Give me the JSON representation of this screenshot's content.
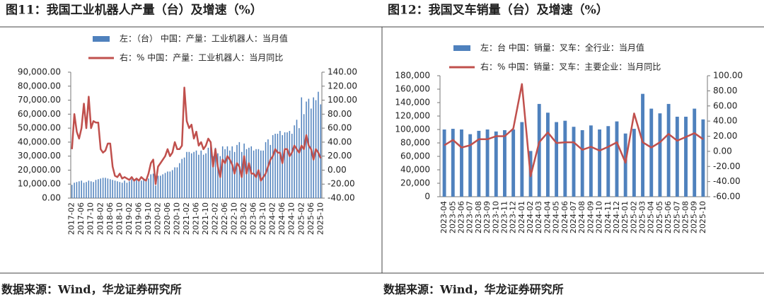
{
  "chart_data": [
    {
      "type": "bar",
      "title": "图11：我国工业机器人产量（台）及增速（%）",
      "source": "数据来源：Wind，华龙证券研究所",
      "categories": [
        "2017-02",
        null,
        null,
        null,
        "2017-06",
        null,
        null,
        null,
        "2017-10",
        null,
        null,
        null,
        "2018-02",
        null,
        null,
        null,
        "2018-06",
        null,
        null,
        null,
        "2018-10",
        null,
        null,
        null,
        "2019-02",
        null,
        null,
        null,
        "2019-06",
        null,
        null,
        null,
        "2019-10",
        null,
        null,
        null,
        "2020-02",
        null,
        null,
        null,
        "2020-06",
        null,
        null,
        null,
        "2020-10",
        null,
        null,
        null,
        "2021-02",
        null,
        null,
        null,
        "2021-06",
        null,
        null,
        null,
        "2021-10",
        null,
        null,
        null,
        "2022-02",
        null,
        null,
        null,
        "2022-06",
        null,
        null,
        null,
        "2022-10",
        null,
        null,
        null,
        "2023-02",
        null,
        null,
        null,
        "2023-06",
        null,
        null,
        null,
        "2023-10",
        null,
        null,
        null,
        "2024-02",
        null,
        null,
        null,
        "2024-06",
        null,
        null,
        null,
        "2024-10",
        null,
        null,
        null,
        "2025-02",
        null,
        null,
        null,
        "2025-06",
        null,
        null,
        null,
        "2025-10"
      ],
      "series": [
        {
          "name": "左：（台） 中国：产量：工业机器人：当月值",
          "type": "bar",
          "axis": "y",
          "color": "#4f81bd",
          "values": [
            9500,
            11000,
            11500,
            12000,
            12500,
            11000,
            11500,
            12500,
            12000,
            11500,
            13000,
            13500,
            14000,
            14500,
            14500,
            14000,
            13500,
            13000,
            12500,
            12000,
            11500,
            11000,
            12500,
            11000,
            12000,
            13500,
            13500,
            14000,
            13000,
            12500,
            13000,
            13500,
            14000,
            17000,
            17500,
            9000,
            16000,
            16000,
            17000,
            18000,
            19000,
            19000,
            20000,
            22000,
            22000,
            25000,
            28000,
            29000,
            33000,
            33000,
            32000,
            33000,
            34000,
            31000,
            34000,
            31000,
            32000,
            36000,
            38000,
            30000,
            36000,
            32000,
            30000,
            37000,
            35000,
            37000,
            34000,
            37000,
            33000,
            38000,
            40000,
            33000,
            39000,
            35000,
            36000,
            37000,
            34000,
            35000,
            35000,
            34000,
            34000,
            40000,
            42000,
            38000,
            45000,
            46000,
            46000,
            48000,
            45000,
            47000,
            47000,
            48000,
            46000,
            52000,
            56000,
            50000,
            72000,
            60000,
            69000,
            71000,
            64000,
            72000,
            70000,
            76000,
            67000
          ]
        },
        {
          "name": "右：% 中国：产量：工业机器人：当月同比",
          "type": "line",
          "axis": "y2",
          "color": "#c0504d",
          "values": [
            30,
            80,
            55,
            45,
            60,
            95,
            60,
            105,
            60,
            70,
            68,
            68,
            30,
            25,
            28,
            38,
            38,
            5,
            -8,
            -10,
            -5,
            -12,
            -10,
            -12,
            -14,
            -10,
            -15,
            -12,
            -15,
            -10,
            -13,
            -15,
            -5,
            10,
            15,
            -20,
            5,
            10,
            15,
            20,
            30,
            20,
            25,
            40,
            30,
            30,
            35,
            118,
            70,
            60,
            65,
            45,
            55,
            35,
            40,
            30,
            35,
            45,
            40,
            5,
            30,
            5,
            -10,
            15,
            10,
            20,
            15,
            8,
            -5,
            10,
            5,
            -10,
            20,
            -5,
            10,
            -5,
            -5,
            -10,
            0,
            -15,
            -10,
            -5,
            5,
            15,
            20,
            30,
            25,
            25,
            10,
            30,
            30,
            20,
            25,
            35,
            30,
            25,
            35,
            30,
            50,
            35,
            30,
            15,
            30,
            25,
            17
          ]
        }
      ],
      "ylim": [
        0,
        90000
      ],
      "yticks": [
        {
          "value": 0,
          "label": "0.00"
        },
        {
          "value": 10000,
          "label": "10,000.00"
        },
        {
          "value": 20000,
          "label": "20,000.00"
        },
        {
          "value": 30000,
          "label": "30,000.00"
        },
        {
          "value": 40000,
          "label": "40,000.00"
        },
        {
          "value": 50000,
          "label": "50,000.00"
        },
        {
          "value": 60000,
          "label": "60,000.00"
        },
        {
          "value": 70000,
          "label": "70,000.00"
        },
        {
          "value": 80000,
          "label": "80,000.00"
        },
        {
          "value": 90000,
          "label": "90,000.00"
        }
      ],
      "y2lim": [
        -40,
        140
      ],
      "y2ticks": [
        {
          "value": -40,
          "label": "-40.00"
        },
        {
          "value": -20,
          "label": "-20.00"
        },
        {
          "value": 0,
          "label": "0.00"
        },
        {
          "value": 20,
          "label": "20.00"
        },
        {
          "value": 40,
          "label": "40.00"
        },
        {
          "value": 60,
          "label": "60.00"
        },
        {
          "value": 80,
          "label": "80.00"
        },
        {
          "value": 100,
          "label": "100.00"
        },
        {
          "value": 120,
          "label": "120.00"
        },
        {
          "value": 140,
          "label": "140.00"
        }
      ]
    },
    {
      "type": "bar",
      "title": "图12：我国叉车销量（台）及增速（%）",
      "source": "数据来源：Wind，华龙证券研究所",
      "categories": [
        "2023-04",
        "2023-05",
        "2023-06",
        "2023-07",
        "2023-08",
        "2023-09",
        "2023-10",
        "2023-11",
        "2023-12",
        "2024-01",
        "2024-02",
        "2024-03",
        "2024-04",
        "2024-05",
        "2024-06",
        "2024-07",
        "2024-08",
        "2024-09",
        "2024-10",
        "2024-11",
        "2024-12",
        "2025-01",
        "2025-02",
        "2025-03",
        "2025-04",
        "2025-05",
        "2025-06",
        "2025-07",
        "2025-08",
        "2025-09",
        "2025-10"
      ],
      "series": [
        {
          "name": "左：台 中国：销量：叉车：全行业：当月值",
          "type": "bar",
          "axis": "y",
          "color": "#4f81bd",
          "values": [
            100000,
            101000,
            100000,
            93000,
            98000,
            100000,
            97000,
            99000,
            100000,
            111000,
            68000,
            138000,
            125000,
            111000,
            113000,
            104000,
            99000,
            106000,
            100000,
            105000,
            112000,
            94000,
            101000,
            153000,
            131000,
            124000,
            138000,
            119000,
            119000,
            131000,
            115000
          ]
        },
        {
          "name": "右：% 中国：销量：叉车：主要企业：当月同比",
          "type": "line",
          "axis": "y2",
          "color": "#c0504d",
          "values": [
            8,
            15,
            5,
            8,
            16,
            16,
            20,
            20,
            30,
            89,
            -33,
            12,
            25,
            11,
            12,
            12,
            2,
            6,
            1,
            6,
            12,
            -15,
            50,
            12,
            5,
            12,
            23,
            14,
            19,
            24,
            16
          ]
        }
      ],
      "ylim": [
        0,
        180000
      ],
      "yticks": [
        0,
        {
          "value": 20000,
          "label": "20,000"
        },
        {
          "value": 40000,
          "label": "40,000"
        },
        {
          "value": 60000,
          "label": "60,000"
        },
        {
          "value": 80000,
          "label": "80,000"
        },
        {
          "value": 100000,
          "label": "100,000"
        },
        {
          "value": 120000,
          "label": "120,000"
        },
        {
          "value": 140000,
          "label": "140,000"
        },
        {
          "value": 160000,
          "label": "160,000"
        },
        {
          "value": 180000,
          "label": "180,000"
        }
      ],
      "y2lim": [
        -60,
        100
      ],
      "y2ticks": [
        {
          "value": -60,
          "label": "-60.00"
        },
        {
          "value": -40,
          "label": "-40.00"
        },
        {
          "value": -20,
          "label": "-20.00"
        },
        {
          "value": 0,
          "label": "0.00"
        },
        {
          "value": 20,
          "label": "20.00"
        },
        {
          "value": 40,
          "label": "40.00"
        },
        {
          "value": 60,
          "label": "60.00"
        },
        {
          "value": 80,
          "label": "80.00"
        },
        {
          "value": 100,
          "label": "100.00"
        }
      ]
    }
  ]
}
